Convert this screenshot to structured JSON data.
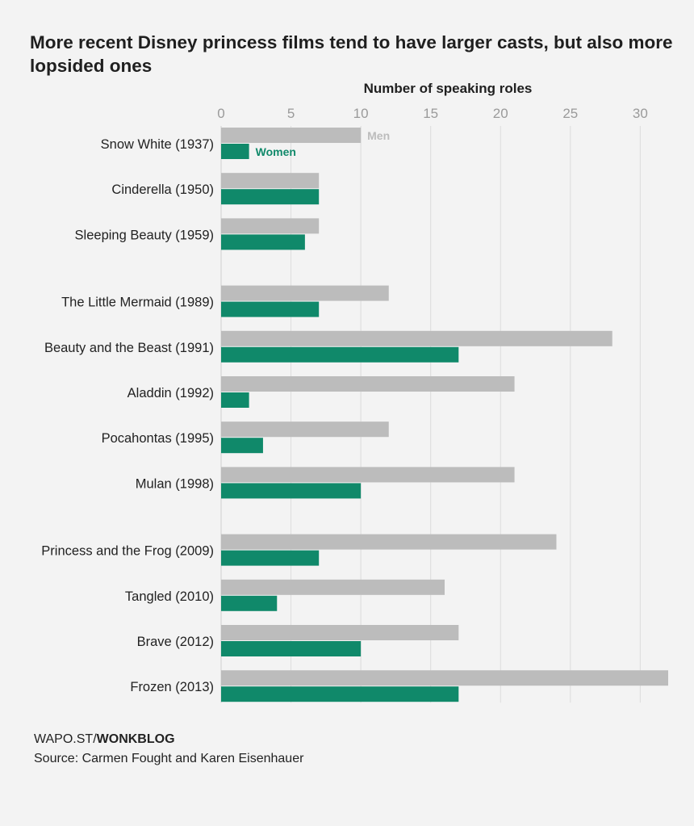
{
  "title": "More recent Disney princess films tend to have larger casts, but also more lopsided ones",
  "footer": {
    "brand_prefix": "WAPO.ST/",
    "brand_bold": "WONKBLOG",
    "source": "Source: Carmen Fought and Karen Eisenhauer"
  },
  "colors": {
    "men": "#bcbcbc",
    "women": "#10896a",
    "grid": "#dcdcdc",
    "tick": "#9a9a9a",
    "background": "#f3f3f3"
  },
  "chart_data": {
    "type": "bar",
    "orientation": "horizontal",
    "xlabel": "Number of speaking roles",
    "xlim": [
      0,
      32
    ],
    "xticks": [
      0,
      5,
      10,
      15,
      20,
      25,
      30
    ],
    "grid": true,
    "categories": [
      "Snow White (1937)",
      "Cinderella (1950)",
      "Sleeping Beauty (1959)",
      "The Little Mermaid (1989)",
      "Beauty and the Beast (1991)",
      "Aladdin (1992)",
      "Pocahontas (1995)",
      "Mulan (1998)",
      "Princess and the Frog (2009)",
      "Tangled (2010)",
      "Brave (2012)",
      "Frozen (2013)"
    ],
    "groups": [
      [
        0,
        1,
        2
      ],
      [
        3,
        4,
        5,
        6,
        7
      ],
      [
        8,
        9,
        10,
        11
      ]
    ],
    "series": [
      {
        "name": "Men",
        "values": [
          10,
          7,
          7,
          12,
          28,
          21,
          12,
          21,
          24,
          16,
          17,
          32
        ]
      },
      {
        "name": "Women",
        "values": [
          2,
          7,
          6,
          7,
          17,
          2,
          3,
          10,
          7,
          4,
          10,
          17
        ]
      }
    ]
  }
}
